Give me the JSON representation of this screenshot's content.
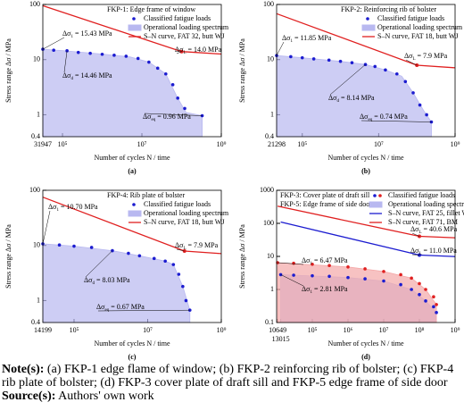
{
  "chart_data": [
    {
      "type": "line",
      "label": "(a)",
      "log_x": true,
      "log_y": true,
      "legend_title": [
        {
          "text": "FKP-1: Edge frame of window",
          "color": "#000000"
        }
      ],
      "xlabel": "Number of cycles N / time",
      "ylabel": "Stress range Δσ / MPa",
      "xlim": [
        31947,
        1000000000
      ],
      "xticks": [
        31947,
        {
          "value": 100000,
          "label": "10⁵"
        },
        {
          "value": 10000000,
          "label": "10⁷"
        },
        {
          "value": 1000000000,
          "label": "10⁹"
        }
      ],
      "xtick_colors": [
        "#000000",
        "#000000",
        "#000000",
        "#000000"
      ],
      "ylim": [
        0.4,
        100
      ],
      "yticks": [
        0.4,
        1,
        10,
        100
      ],
      "series": [
        {
          "name": "Classified fatigue loads",
          "kind": "scatter",
          "color": "#1c1cd0",
          "x": [
            31947,
            60000,
            130000,
            250000,
            500000,
            1000000,
            2000000,
            4000000,
            8000000,
            15000000,
            25000000,
            40000000,
            60000000,
            80000000,
            120000000,
            330000000
          ],
          "values": [
            15.43,
            14.8,
            14.46,
            13.5,
            13,
            12.5,
            12,
            11.5,
            10.5,
            9,
            7,
            5.5,
            3.5,
            2,
            1.3,
            0.96
          ]
        },
        {
          "name": "Operational loading spectrum",
          "kind": "area",
          "color": "#b8b8f0",
          "x": [
            31947,
            100000,
            1000000,
            5000000,
            15000000,
            40000000,
            80000000,
            130000000,
            330000000
          ],
          "values": [
            15.43,
            14.6,
            12.6,
            11.2,
            9,
            5.5,
            2,
            1.1,
            0.96
          ]
        },
        {
          "name": "S–N curve, FAT 32, butt WJ",
          "kind": "line",
          "color": "#e02020",
          "x": [
            31947,
            100000000,
            1000000000
          ],
          "values": [
            95,
            14.0,
            12.6
          ]
        }
      ],
      "annotations": [
        {
          "sym": "Δσ",
          "sub": "1",
          "text": " = 15.43 MPa"
        },
        {
          "sym": "Δσ",
          "sub": "L",
          "text": " = 14.0 MPa"
        },
        {
          "sym": "Δσ",
          "sub": "d",
          "text": " = 14.46 MPa"
        },
        {
          "sym": "Δσ",
          "sub": "eq",
          "text": " = 0.96 MPa"
        }
      ]
    },
    {
      "type": "line",
      "label": "(b)",
      "log_x": true,
      "log_y": true,
      "legend_title": [
        {
          "text": "FKP-2: Reinforcing rib of bolster",
          "color": "#000000"
        }
      ],
      "xlabel": "Number of cycles N / time",
      "ylabel": "Stress range Δσ / MPa",
      "xlim": [
        21298,
        1000000000
      ],
      "xticks": [
        21298,
        {
          "value": 100000,
          "label": "10⁵"
        },
        {
          "value": 10000000,
          "label": "10⁷"
        },
        {
          "value": 1000000000,
          "label": "10⁹"
        }
      ],
      "xtick_colors": [
        "#000000",
        "#000000",
        "#000000",
        "#000000"
      ],
      "ylim": [
        0.4,
        100
      ],
      "yticks": [
        0.4,
        1,
        10,
        100
      ],
      "series": [
        {
          "name": "Classified fatigue loads",
          "kind": "scatter",
          "color": "#1c1cd0",
          "x": [
            21298,
            50000,
            100000,
            200000,
            500000,
            1000000,
            2000000,
            4500000,
            8000000,
            15000000,
            30000000,
            50000000,
            80000000,
            120000000,
            180000000,
            240000000
          ],
          "values": [
            11.85,
            11.3,
            10.8,
            10.3,
            9.8,
            9.3,
            8.8,
            8.14,
            7.5,
            6.5,
            5.5,
            4,
            2.5,
            1.5,
            1.0,
            0.74
          ]
        },
        {
          "name": "Operational loading spectrum",
          "kind": "area",
          "color": "#b8b8f0",
          "x": [
            21298,
            100000,
            1000000,
            4500000,
            15000000,
            40000000,
            80000000,
            150000000,
            240000000
          ],
          "values": [
            11.85,
            10.8,
            9.3,
            8.14,
            6.5,
            5,
            2.5,
            1.2,
            0.74
          ]
        },
        {
          "name": "S–N curve, FAT 18, butt WJ",
          "kind": "line",
          "color": "#e02020",
          "x": [
            21298,
            100000000,
            1000000000
          ],
          "values": [
            68,
            7.9,
            7.1
          ]
        }
      ],
      "annotations": [
        {
          "sym": "Δσ",
          "sub": "1",
          "text": " = 11.85 MPa"
        },
        {
          "sym": "Δσ",
          "sub": "L",
          "text": " = 7.9 MPa"
        },
        {
          "sym": "Δσ",
          "sub": "d",
          "text": " = 8.14 MPa"
        },
        {
          "sym": "Δσ",
          "sub": "eq",
          "text": " = 0.74 MPa"
        }
      ]
    },
    {
      "type": "line",
      "label": "(c)",
      "log_x": true,
      "log_y": true,
      "legend_title": [
        {
          "text": "FKP-4: Rib plate of bolster",
          "color": "#000000"
        }
      ],
      "xlabel": "Number of cycles N / time",
      "ylabel": "Stress range Δσ / MPa",
      "xlim": [
        14199,
        1000000000
      ],
      "xticks": [
        14199,
        {
          "value": 100000,
          "label": "10⁵"
        },
        {
          "value": 10000000,
          "label": "10⁷"
        },
        {
          "value": 1000000000,
          "label": "10⁹"
        }
      ],
      "xtick_colors": [
        "#000000",
        "#000000",
        "#000000",
        "#000000"
      ],
      "ylim": [
        0.4,
        100
      ],
      "yticks": [
        0.4,
        1,
        10,
        100
      ],
      "series": [
        {
          "name": "Classified fatigue loads",
          "kind": "scatter",
          "color": "#1c1cd0",
          "x": [
            14199,
            40000,
            100000,
            300000,
            1100000,
            3000000,
            6000000,
            15000000,
            30000000,
            50000000,
            70000000,
            90000000,
            110000000,
            140000000
          ],
          "values": [
            10.7,
            10.2,
            9.7,
            9.2,
            8.03,
            7.2,
            6.5,
            5.8,
            5.2,
            4.5,
            3,
            1.8,
            1.0,
            0.67
          ]
        },
        {
          "name": "Operational loading spectrum",
          "kind": "area",
          "color": "#b8b8f0",
          "x": [
            14199,
            100000,
            1100000,
            6000000,
            30000000,
            50000000,
            90000000,
            140000000
          ],
          "values": [
            10.7,
            9.7,
            8.03,
            6.5,
            5.2,
            4.5,
            1.8,
            0.67
          ]
        },
        {
          "name": "S–N curve, FAT 18, butt WJ",
          "kind": "line",
          "color": "#e02020",
          "x": [
            14199,
            100000000,
            1000000000
          ],
          "values": [
            75,
            7.9,
            7.1
          ]
        }
      ],
      "annotations": [
        {
          "sym": "Δσ",
          "sub": "1",
          "text": " = 10.70 MPa"
        },
        {
          "sym": "Δσ",
          "sub": "L",
          "text": " = 7.9 MPa"
        },
        {
          "sym": "Δσ",
          "sub": "d",
          "text": " = 8.03 MPa"
        },
        {
          "sym": "Δσ",
          "sub": "eq",
          "text": " = 0.67 MPa"
        }
      ]
    },
    {
      "type": "line",
      "label": "(d)",
      "log_x": true,
      "log_y": true,
      "legend_title": [
        {
          "text": "FKP-3: Cover plate of draft sill",
          "color": "#1c1cd0"
        },
        {
          "text": "FKP-5: Edge frame of side door",
          "color": "#e02020"
        }
      ],
      "xlabel": "Number of cycles N / time",
      "ylabel": "Stress range Δσ / MPa",
      "xlim": [
        10000,
        1000000000
      ],
      "xticks": [
        10649,
        13015,
        {
          "value": 100000,
          "label": "10⁵"
        },
        {
          "value": 1000000,
          "label": "10⁶"
        },
        {
          "value": 10000000,
          "label": "10⁷"
        },
        {
          "value": 100000000,
          "label": "10⁸"
        },
        {
          "value": 1000000000,
          "label": "10⁹"
        }
      ],
      "xtick_colors": [
        "#e02020",
        "#1c1cd0",
        "#000000",
        "#000000",
        "#000000",
        "#000000",
        "#000000"
      ],
      "ylim": [
        0.1,
        1000
      ],
      "yticks": [
        0.1,
        1,
        10,
        100,
        1000
      ],
      "series": [
        {
          "name": "Classified fatigue loads",
          "kind": "scatter",
          "color": "#1c1cd0",
          "x": [
            13015,
            30000,
            100000,
            300000,
            1000000,
            3000000,
            10000000,
            30000000,
            60000000,
            100000000,
            150000000,
            250000000,
            300000000
          ],
          "values": [
            2.81,
            2.7,
            2.6,
            2.5,
            2.3,
            2.1,
            1.8,
            1.4,
            1.0,
            0.7,
            0.45,
            0.3,
            0.2
          ]
        },
        {
          "kind": "scatter",
          "color": "#e02020",
          "x": [
            10649,
            30000,
            100000,
            300000,
            1000000,
            3000000,
            10000000,
            30000000,
            60000000,
            100000000,
            150000000,
            250000000,
            300000000
          ],
          "values": [
            6.47,
            6.2,
            5.8,
            5.3,
            4.8,
            4.2,
            3.5,
            2.8,
            2.2,
            1.5,
            1.0,
            0.6,
            0.35
          ]
        },
        {
          "name": "Operational loading spectrum",
          "kind": "area",
          "color": "#b8b8f0",
          "x": [
            13015,
            1000000,
            10000000,
            60000000,
            150000000,
            300000000
          ],
          "values": [
            2.81,
            2.3,
            1.8,
            1.0,
            0.45,
            0.2
          ]
        },
        {
          "kind": "area",
          "color": "#f4a8a8",
          "x": [
            10649,
            1000000,
            10000000,
            60000000,
            150000000,
            300000000
          ],
          "values": [
            6.47,
            4.8,
            3.5,
            2.2,
            1.0,
            0.35
          ]
        },
        {
          "name": "S–N curve, FAT 25, fillet WJ",
          "kind": "line",
          "color": "#1c1cd0",
          "x": [
            13015,
            100000000,
            1000000000
          ],
          "values": [
            110,
            11.0,
            9.9
          ]
        },
        {
          "name": "S–N curve, FAT 71, BM",
          "kind": "line",
          "color": "#e02020",
          "x": [
            10649,
            100000000,
            1000000000
          ],
          "values": [
            330,
            40.6,
            36.5
          ]
        }
      ],
      "annotations": [
        {
          "sym": "Δσ",
          "sub": "L",
          "text": " = 40.6 MPa"
        },
        {
          "sym": "Δσ",
          "sub": "L",
          "text": " = 11.0 MPa"
        },
        {
          "sym": "Δσ",
          "sub": "1",
          "text": " = 6.47 MPa"
        },
        {
          "sym": "Δσ",
          "sub": "1",
          "text": " = 2.81 MPa"
        }
      ]
    }
  ],
  "notes": {
    "label": "Note(s):",
    "text": "(a) FKP-1 edge flame of window; (b) FKP-2 reinforcing rib of bolster; (c) FKP-4 rib plate of bolster; (d) FKP-3 cover plate of draft sill and FKP-5 edge frame of side door"
  },
  "source": {
    "label": "Source(s):",
    "text": "Authors' own work"
  }
}
